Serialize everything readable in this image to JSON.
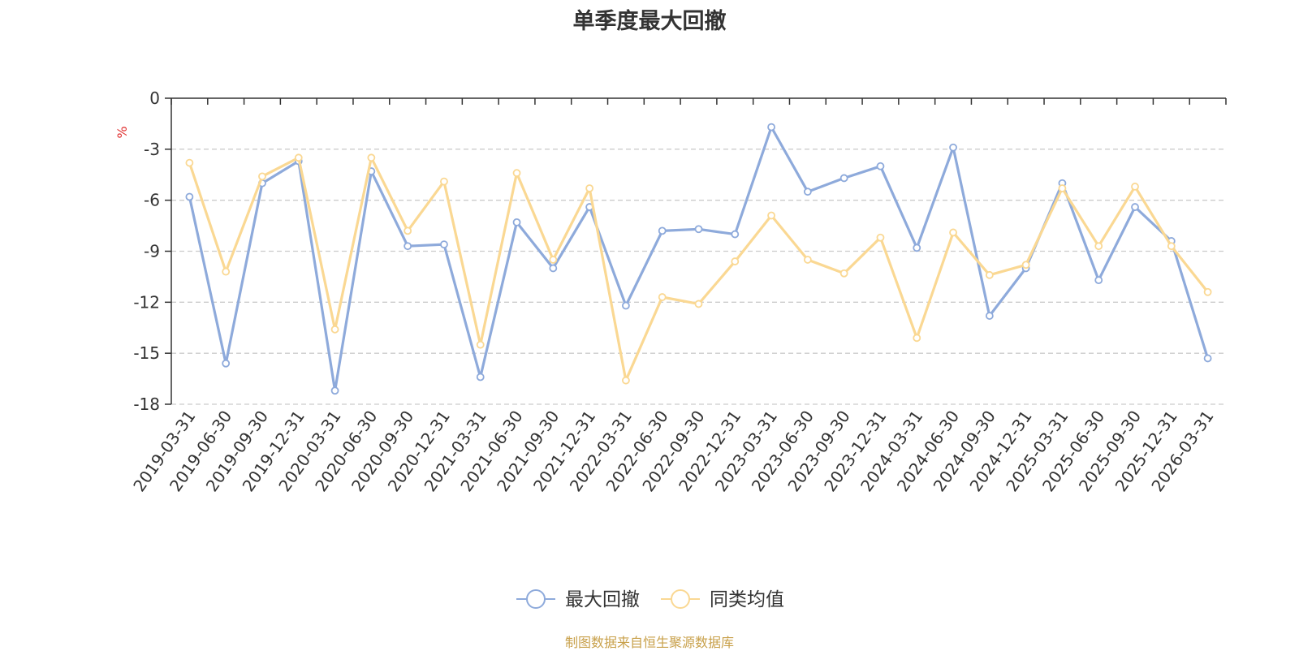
{
  "chart_data": {
    "type": "line",
    "title": "单季度最大回撤",
    "ylabel": "%",
    "xlabel": "",
    "ylim": [
      -18,
      0
    ],
    "yticks": [
      0,
      -3,
      -6,
      -9,
      -12,
      -15,
      -18
    ],
    "grid": true,
    "legend_position": "bottom-center",
    "categories": [
      "2019-03-31",
      "2019-06-30",
      "2019-09-30",
      "2019-12-31",
      "2020-03-31",
      "2020-06-30",
      "2020-09-30",
      "2020-12-31",
      "2021-03-31",
      "2021-06-30",
      "2021-09-30",
      "2021-12-31",
      "2022-03-31",
      "2022-06-30",
      "2022-09-30",
      "2022-12-31",
      "2023-03-31",
      "2023-06-30",
      "2023-09-30",
      "2023-12-31",
      "2024-03-31",
      "2024-06-30",
      "2024-09-30",
      "2024-12-31",
      "2025-03-31",
      "2025-06-30",
      "2025-09-30",
      "2025-12-31",
      "2026-03-31"
    ],
    "series": [
      {
        "name": "最大回撤",
        "color": "#8eaadb",
        "values": [
          -5.8,
          -15.6,
          -5.0,
          -3.7,
          -17.2,
          -4.3,
          -8.7,
          -8.6,
          -16.4,
          -7.3,
          -10.0,
          -6.4,
          -12.2,
          -7.8,
          -7.7,
          -8.0,
          -1.7,
          -5.5,
          -4.7,
          -4.0,
          -8.8,
          -2.9,
          -12.8,
          -10.0,
          -5.0,
          -10.7,
          -6.4,
          -8.4,
          -15.3
        ]
      },
      {
        "name": "同类均值",
        "color": "#fad893",
        "values": [
          -3.8,
          -10.2,
          -4.6,
          -3.5,
          -13.6,
          -3.5,
          -7.8,
          -4.9,
          -14.5,
          -4.4,
          -9.5,
          -5.3,
          -16.6,
          -11.7,
          -12.1,
          -9.6,
          -6.9,
          -9.5,
          -10.3,
          -8.2,
          -14.1,
          -7.9,
          -10.4,
          -9.8,
          -5.3,
          -8.7,
          -5.2,
          -8.7,
          -11.4
        ]
      }
    ]
  },
  "source_text": "制图数据来自恒生聚源数据库"
}
